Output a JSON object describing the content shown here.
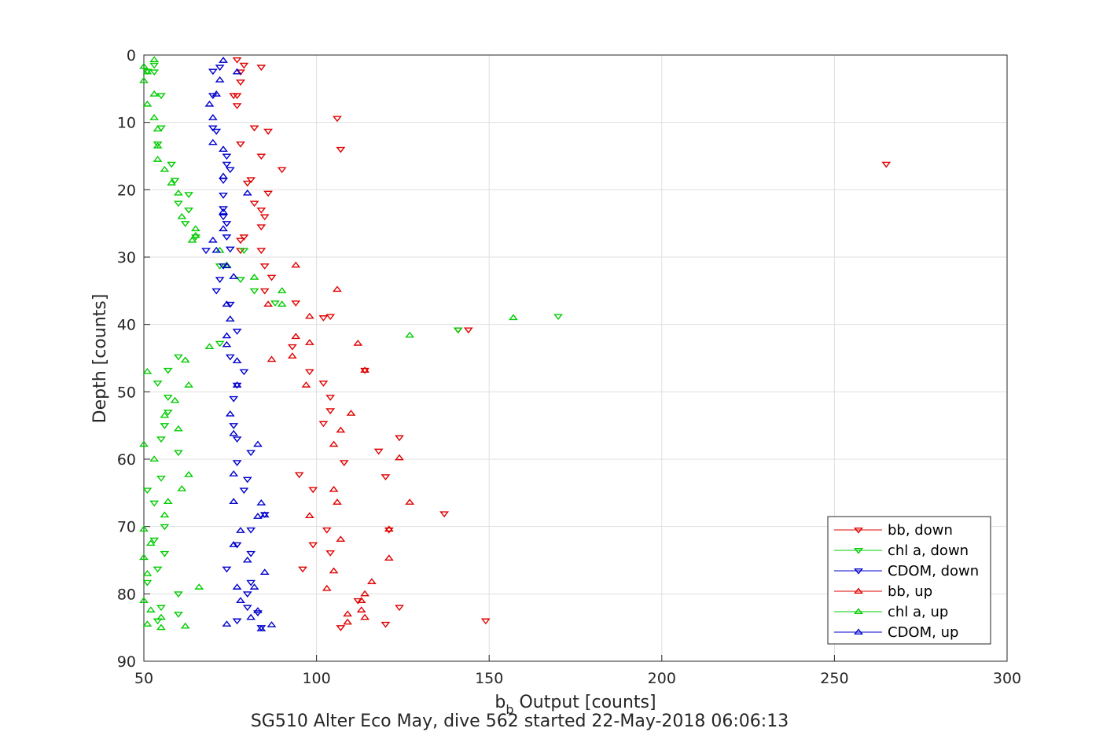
{
  "chart_data": {
    "type": "scatter",
    "xlabel_main": "b",
    "xlabel_sub": "b",
    "xlabel_rest": " Output [counts]",
    "ylabel": "Depth [counts]",
    "caption": "SG510 Alter Eco May, dive 562 started 22-May-2018 06:06:13",
    "xlim": [
      50,
      300
    ],
    "ylim": [
      0,
      90
    ],
    "y_reversed": true,
    "xticks": [
      "50",
      "100",
      "150",
      "200",
      "250",
      "300"
    ],
    "yticks": [
      "0",
      "10",
      "20",
      "30",
      "40",
      "50",
      "60",
      "70",
      "80",
      "90"
    ],
    "grid": true,
    "legend_position": "bottom-right",
    "series": [
      {
        "name": "bb, down",
        "color": "#e00000",
        "marker": "triangle-down",
        "points": [
          [
            77,
            0.7
          ],
          [
            79,
            1.5
          ],
          [
            84,
            1.8
          ],
          [
            78,
            2.5
          ],
          [
            78,
            4
          ],
          [
            77,
            6
          ],
          [
            76,
            6
          ],
          [
            77,
            7.5
          ],
          [
            106,
            9.4
          ],
          [
            82,
            10.8
          ],
          [
            86,
            11.3
          ],
          [
            78,
            13.2
          ],
          [
            107,
            14
          ],
          [
            84,
            15
          ],
          [
            265,
            16.2
          ],
          [
            90,
            17
          ],
          [
            81,
            18.5
          ],
          [
            80,
            19
          ],
          [
            86,
            20.5
          ],
          [
            82,
            22
          ],
          [
            84,
            23
          ],
          [
            85,
            24
          ],
          [
            84,
            25.5
          ],
          [
            79,
            27
          ],
          [
            78,
            27.5
          ],
          [
            78,
            29
          ],
          [
            84,
            29
          ],
          [
            85,
            31.3
          ],
          [
            87,
            33
          ],
          [
            85,
            35
          ],
          [
            94,
            36.8
          ],
          [
            104,
            38.8
          ],
          [
            102,
            39
          ],
          [
            141,
            40.8
          ],
          [
            144,
            40.8
          ],
          [
            93,
            43.3
          ],
          [
            114,
            46.8
          ],
          [
            98,
            47
          ],
          [
            102,
            48.7
          ],
          [
            104,
            50.8
          ],
          [
            104,
            52.8
          ],
          [
            102,
            54.7
          ],
          [
            108,
            60.5
          ],
          [
            118,
            58.8
          ],
          [
            124,
            56.8
          ],
          [
            95,
            62.3
          ],
          [
            120,
            62.6
          ],
          [
            99,
            64.5
          ],
          [
            137,
            68.1
          ],
          [
            103,
            70.5
          ],
          [
            104,
            73.9
          ],
          [
            99,
            72.7
          ],
          [
            96,
            76.3
          ],
          [
            121,
            70.5
          ],
          [
            124,
            82
          ],
          [
            112,
            81
          ],
          [
            107,
            85
          ],
          [
            149,
            84
          ],
          [
            120,
            84.5
          ]
        ]
      },
      {
        "name": "chl a, down",
        "color": "#00cc00",
        "marker": "triangle-down",
        "points": [
          [
            53,
            1.5
          ],
          [
            53,
            2.5
          ],
          [
            51,
            2.4
          ],
          [
            55,
            6
          ],
          [
            55,
            10.8
          ],
          [
            54,
            13.2
          ],
          [
            58,
            16.2
          ],
          [
            59,
            18.6
          ],
          [
            63,
            20.7
          ],
          [
            60,
            22
          ],
          [
            63,
            23
          ],
          [
            62,
            25
          ],
          [
            65,
            27
          ],
          [
            79,
            29
          ],
          [
            72,
            31.3
          ],
          [
            78,
            33.3
          ],
          [
            82,
            35
          ],
          [
            88,
            36.8
          ],
          [
            170,
            38.8
          ],
          [
            141,
            40.8
          ],
          [
            72,
            42.8
          ],
          [
            60,
            44.8
          ],
          [
            57,
            46.8
          ],
          [
            54,
            48.7
          ],
          [
            57,
            50.8
          ],
          [
            57,
            53
          ],
          [
            56,
            55
          ],
          [
            55,
            57
          ],
          [
            60,
            59
          ],
          [
            55,
            62.8
          ],
          [
            51,
            64.6
          ],
          [
            53,
            66.5
          ],
          [
            56,
            70
          ],
          [
            53,
            72
          ],
          [
            56,
            74
          ],
          [
            54,
            76.3
          ],
          [
            51,
            78.3
          ],
          [
            60,
            80
          ],
          [
            60,
            83
          ],
          [
            54,
            84
          ],
          [
            55,
            82
          ]
        ]
      },
      {
        "name": "CDOM, down",
        "color": "#0000cc",
        "marker": "triangle-down",
        "points": [
          [
            72,
            1.8
          ],
          [
            70,
            2.4
          ],
          [
            70,
            6
          ],
          [
            70,
            10.8
          ],
          [
            71,
            11.3
          ],
          [
            74,
            15
          ],
          [
            74,
            16.2
          ],
          [
            75,
            17
          ],
          [
            73,
            18.6
          ],
          [
            73,
            20.8
          ],
          [
            73,
            22.8
          ],
          [
            73,
            24
          ],
          [
            74,
            25
          ],
          [
            74,
            27
          ],
          [
            75,
            28.8
          ],
          [
            68,
            29
          ],
          [
            73,
            31.3
          ],
          [
            72,
            33.3
          ],
          [
            71,
            35
          ],
          [
            75,
            37
          ],
          [
            77,
            41
          ],
          [
            75,
            44.8
          ],
          [
            79,
            47
          ],
          [
            77,
            49
          ],
          [
            76,
            51
          ],
          [
            76,
            55
          ],
          [
            77,
            57
          ],
          [
            77,
            60.5
          ],
          [
            81,
            59
          ],
          [
            80,
            63
          ],
          [
            79,
            64.6
          ],
          [
            85,
            68.2
          ],
          [
            81,
            70.5
          ],
          [
            77,
            72.7
          ],
          [
            81,
            74
          ],
          [
            74,
            76.3
          ],
          [
            81,
            78.3
          ],
          [
            80,
            80
          ],
          [
            80,
            82
          ],
          [
            83,
            82.8
          ],
          [
            77,
            84
          ],
          [
            84,
            85
          ]
        ]
      },
      {
        "name": "bb, up",
        "color": "#e00000",
        "marker": "triangle-up",
        "points": [
          [
            94,
            31.2
          ],
          [
            106,
            34.8
          ],
          [
            86,
            37
          ],
          [
            98,
            38.8
          ],
          [
            98,
            42.7
          ],
          [
            94,
            41.8
          ],
          [
            93,
            44.7
          ],
          [
            87,
            45.2
          ],
          [
            114,
            46.8
          ],
          [
            112,
            42.8
          ],
          [
            97,
            49
          ],
          [
            110,
            53.2
          ],
          [
            107,
            55.7
          ],
          [
            105,
            57.8
          ],
          [
            124,
            59.8
          ],
          [
            105,
            64.5
          ],
          [
            106,
            66.4
          ],
          [
            127,
            66.4
          ],
          [
            98,
            68.4
          ],
          [
            107,
            71.9
          ],
          [
            121,
            70.4
          ],
          [
            105,
            76.6
          ],
          [
            121,
            74.7
          ],
          [
            103,
            79.2
          ],
          [
            116,
            78.2
          ],
          [
            113,
            81
          ],
          [
            114,
            80
          ],
          [
            113,
            82.4
          ],
          [
            114,
            83.5
          ],
          [
            109,
            84.2
          ],
          [
            109,
            83
          ]
        ]
      },
      {
        "name": "chl a, up",
        "color": "#00cc00",
        "marker": "triangle-up",
        "points": [
          [
            53,
            0.7
          ],
          [
            50,
            1.7
          ],
          [
            51,
            2.5
          ],
          [
            50,
            3.8
          ],
          [
            53,
            5.8
          ],
          [
            51,
            7.3
          ],
          [
            53,
            9.3
          ],
          [
            54,
            11
          ],
          [
            54,
            13.5
          ],
          [
            54,
            15.5
          ],
          [
            56,
            17
          ],
          [
            58,
            19
          ],
          [
            60,
            20.5
          ],
          [
            61,
            24
          ],
          [
            65,
            25.8
          ],
          [
            64,
            27.5
          ],
          [
            65,
            26.8
          ],
          [
            72,
            29
          ],
          [
            74,
            31.2
          ],
          [
            82,
            33
          ],
          [
            90,
            35
          ],
          [
            90,
            37
          ],
          [
            157,
            39
          ],
          [
            127,
            41.6
          ],
          [
            69,
            43.3
          ],
          [
            62,
            45.3
          ],
          [
            51,
            47
          ],
          [
            63,
            49
          ],
          [
            59,
            51.3
          ],
          [
            56,
            53.5
          ],
          [
            60,
            55.5
          ],
          [
            50,
            57.8
          ],
          [
            53,
            60
          ],
          [
            63,
            62.3
          ],
          [
            61,
            64.4
          ],
          [
            57,
            66.3
          ],
          [
            56,
            68.3
          ],
          [
            50,
            70.4
          ],
          [
            52,
            72.5
          ],
          [
            50,
            74.6
          ],
          [
            51,
            77
          ],
          [
            66,
            79
          ],
          [
            50,
            81
          ],
          [
            52,
            82.4
          ],
          [
            55,
            83.5
          ],
          [
            51,
            84.5
          ],
          [
            62,
            84.8
          ],
          [
            55,
            85
          ]
        ]
      },
      {
        "name": "CDOM, up",
        "color": "#0000cc",
        "marker": "triangle-up",
        "points": [
          [
            73,
            0.8
          ],
          [
            77,
            2.5
          ],
          [
            72,
            3.7
          ],
          [
            71,
            5.8
          ],
          [
            69,
            7.3
          ],
          [
            70,
            9.3
          ],
          [
            70,
            13
          ],
          [
            73,
            14
          ],
          [
            73,
            18
          ],
          [
            80,
            20.5
          ],
          [
            73,
            23.3
          ],
          [
            73,
            25.8
          ],
          [
            70,
            27.5
          ],
          [
            71,
            29
          ],
          [
            74,
            31.3
          ],
          [
            76,
            32.9
          ],
          [
            74,
            37
          ],
          [
            75,
            39.2
          ],
          [
            74,
            41.7
          ],
          [
            74,
            43
          ],
          [
            77,
            45.4
          ],
          [
            77,
            49
          ],
          [
            75,
            53.3
          ],
          [
            76,
            56.2
          ],
          [
            83,
            57.8
          ],
          [
            76,
            62.2
          ],
          [
            76,
            66.3
          ],
          [
            84,
            66.5
          ],
          [
            83,
            68.5
          ],
          [
            78,
            70.6
          ],
          [
            85,
            68.3
          ],
          [
            76,
            72.7
          ],
          [
            80,
            75
          ],
          [
            85,
            76.8
          ],
          [
            77,
            79
          ],
          [
            82,
            79
          ],
          [
            78,
            81
          ],
          [
            83,
            82.5
          ],
          [
            81,
            83.5
          ],
          [
            74,
            84.5
          ],
          [
            87,
            84.6
          ],
          [
            84,
            85.2
          ]
        ]
      }
    ]
  }
}
